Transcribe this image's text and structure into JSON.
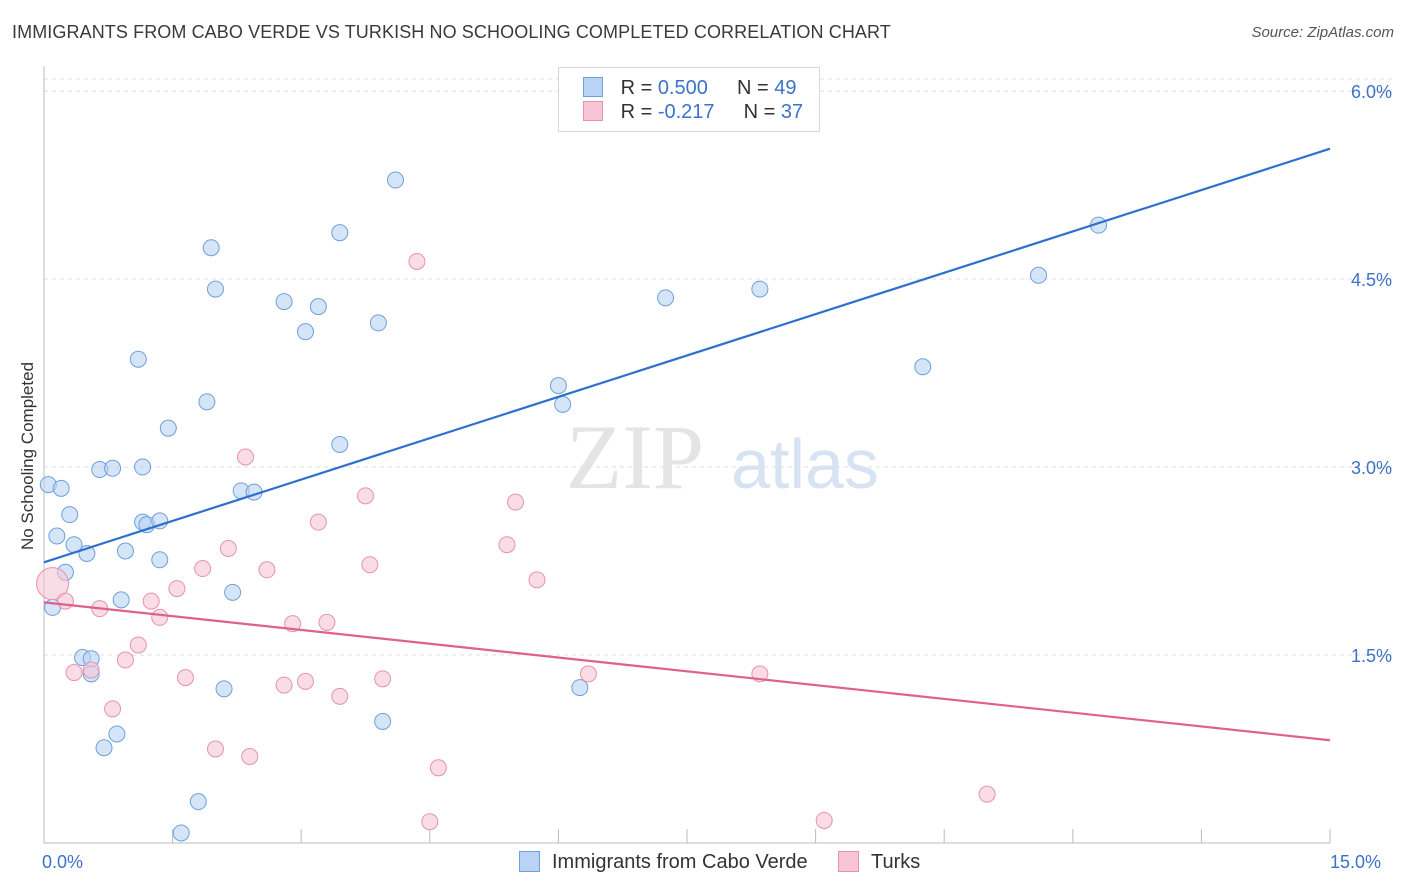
{
  "title": "IMMIGRANTS FROM CABO VERDE VS TURKISH NO SCHOOLING COMPLETED CORRELATION CHART",
  "source": "Source: ZipAtlas.com",
  "watermark": {
    "zip": "ZIP",
    "atlas": "atlas"
  },
  "legend": {
    "rows": [
      {
        "r_label": "R = ",
        "r_value": "0.500",
        "n_label": "N = ",
        "n_value": "49"
      },
      {
        "r_label": "R = ",
        "r_value": "-0.217",
        "n_label": "N = ",
        "n_value": "37"
      }
    ]
  },
  "colors": {
    "blue_fill": "#b8d3f3",
    "blue_stroke": "#6f9fdc",
    "blue_line": "#2f6fce",
    "pink_fill": "#f7c5d5",
    "pink_stroke": "#e493b0",
    "pink_line": "#e0608c",
    "tick_text": "#3b73c8",
    "grid": "#dddddd"
  },
  "chart_data": {
    "type": "scatter",
    "title": "IMMIGRANTS FROM CABO VERDE VS TURKISH NO SCHOOLING COMPLETED CORRELATION CHART",
    "ylabel": "No Schooling Completed",
    "xlabel": "",
    "xlim": [
      0,
      15
    ],
    "ylim": [
      0,
      6.2
    ],
    "x_tick_labels": [
      {
        "value": 0,
        "label": "0.0%"
      },
      {
        "value": 15,
        "label": "15.0%"
      }
    ],
    "y_ticks": [
      {
        "value": 1.5,
        "label": "1.5%"
      },
      {
        "value": 3.0,
        "label": "3.0%"
      },
      {
        "value": 4.5,
        "label": "4.5%"
      },
      {
        "value": 6.0,
        "label": "6.0%"
      }
    ],
    "grid": true,
    "legend_position": "top-center",
    "series": [
      {
        "name": "Immigrants from Cabo Verde",
        "color": "#6f9fdc",
        "r": 0.5,
        "n": 49,
        "trend": {
          "x": [
            0,
            15
          ],
          "y": [
            2.24,
            5.54
          ]
        },
        "points": [
          [
            0.05,
            2.86
          ],
          [
            0.1,
            1.88
          ],
          [
            0.15,
            2.45
          ],
          [
            0.2,
            2.83
          ],
          [
            0.25,
            2.16
          ],
          [
            0.3,
            2.62
          ],
          [
            0.35,
            2.38
          ],
          [
            0.45,
            1.48
          ],
          [
            0.5,
            2.31
          ],
          [
            0.55,
            1.35
          ],
          [
            0.55,
            1.47
          ],
          [
            0.65,
            2.98
          ],
          [
            0.7,
            0.76
          ],
          [
            0.8,
            2.99
          ],
          [
            0.85,
            0.87
          ],
          [
            0.9,
            1.94
          ],
          [
            0.95,
            2.33
          ],
          [
            1.1,
            3.86
          ],
          [
            1.15,
            2.56
          ],
          [
            1.2,
            2.54
          ],
          [
            1.15,
            3.0
          ],
          [
            1.35,
            2.57
          ],
          [
            1.35,
            2.26
          ],
          [
            1.45,
            3.31
          ],
          [
            1.6,
            0.08
          ],
          [
            1.8,
            0.33
          ],
          [
            1.9,
            3.52
          ],
          [
            1.95,
            4.75
          ],
          [
            2.0,
            4.42
          ],
          [
            2.1,
            1.23
          ],
          [
            2.2,
            2.0
          ],
          [
            2.3,
            2.81
          ],
          [
            2.45,
            2.8
          ],
          [
            2.8,
            4.32
          ],
          [
            3.05,
            4.08
          ],
          [
            3.2,
            4.28
          ],
          [
            3.45,
            4.87
          ],
          [
            3.45,
            3.18
          ],
          [
            3.9,
            4.15
          ],
          [
            3.95,
            0.97
          ],
          [
            4.1,
            5.29
          ],
          [
            6.0,
            3.65
          ],
          [
            6.05,
            3.5
          ],
          [
            6.25,
            1.24
          ],
          [
            7.25,
            4.35
          ],
          [
            8.35,
            4.42
          ],
          [
            10.25,
            3.8
          ],
          [
            11.6,
            4.53
          ],
          [
            12.3,
            4.93
          ]
        ]
      },
      {
        "name": "Turks",
        "color": "#e493b0",
        "r": -0.217,
        "n": 37,
        "trend": {
          "x": [
            0,
            15
          ],
          "y": [
            1.92,
            0.82
          ]
        },
        "points": [
          [
            0.1,
            2.07
          ],
          [
            0.25,
            1.93
          ],
          [
            0.35,
            1.36
          ],
          [
            0.55,
            1.38
          ],
          [
            0.65,
            1.87
          ],
          [
            0.8,
            1.07
          ],
          [
            0.95,
            1.46
          ],
          [
            1.1,
            1.58
          ],
          [
            1.25,
            1.93
          ],
          [
            1.35,
            1.8
          ],
          [
            1.55,
            2.03
          ],
          [
            1.65,
            1.32
          ],
          [
            1.85,
            2.19
          ],
          [
            2.0,
            0.75
          ],
          [
            2.15,
            2.35
          ],
          [
            2.35,
            3.08
          ],
          [
            2.4,
            0.69
          ],
          [
            2.6,
            2.18
          ],
          [
            2.8,
            1.26
          ],
          [
            2.9,
            1.75
          ],
          [
            3.05,
            1.29
          ],
          [
            3.2,
            2.56
          ],
          [
            3.3,
            1.76
          ],
          [
            3.45,
            1.17
          ],
          [
            3.75,
            2.77
          ],
          [
            3.8,
            2.22
          ],
          [
            3.95,
            1.31
          ],
          [
            4.35,
            4.64
          ],
          [
            4.5,
            0.17
          ],
          [
            4.6,
            0.6
          ],
          [
            5.4,
            2.38
          ],
          [
            5.5,
            2.72
          ],
          [
            5.75,
            2.1
          ],
          [
            6.35,
            1.35
          ],
          [
            8.35,
            1.35
          ],
          [
            9.1,
            0.18
          ],
          [
            11.0,
            0.39
          ]
        ]
      }
    ]
  }
}
